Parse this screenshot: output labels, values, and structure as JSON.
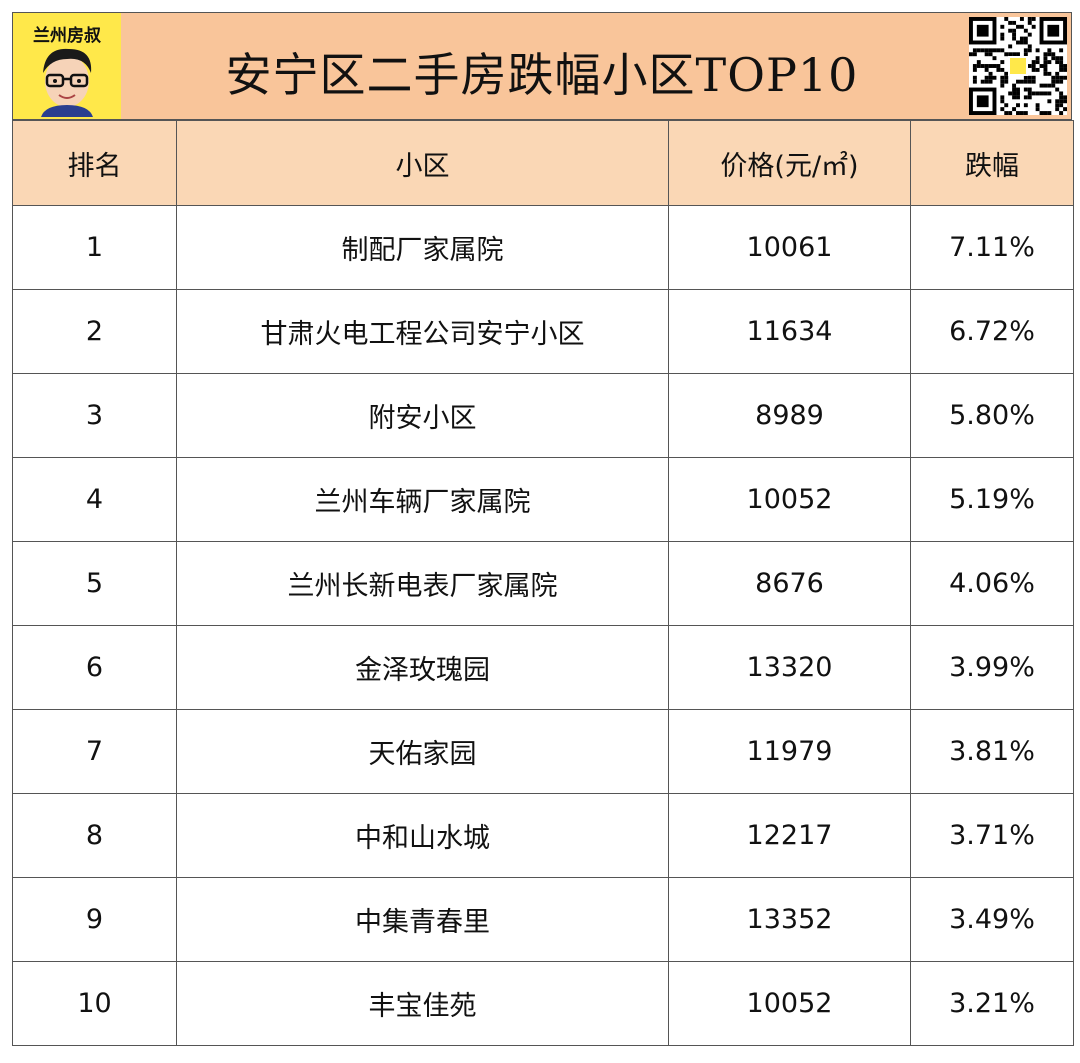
{
  "logo": {
    "text": "兰州房叔"
  },
  "title": "安宁区二手房跌幅小区TOP10",
  "chart_data": {
    "type": "table",
    "columns": [
      "排名",
      "小区",
      "价格(元/㎡)",
      "跌幅"
    ],
    "rows": [
      {
        "rank": "1",
        "name": "制配厂家属院",
        "price": "10061",
        "drop": "7.11%"
      },
      {
        "rank": "2",
        "name": "甘肃火电工程公司安宁小区",
        "price": "11634",
        "drop": "6.72%"
      },
      {
        "rank": "3",
        "name": "附安小区",
        "price": "8989",
        "drop": "5.80%"
      },
      {
        "rank": "4",
        "name": "兰州车辆厂家属院",
        "price": "10052",
        "drop": "5.19%"
      },
      {
        "rank": "5",
        "name": "兰州长新电表厂家属院",
        "price": "8676",
        "drop": "4.06%"
      },
      {
        "rank": "6",
        "name": "金泽玫瑰园",
        "price": "13320",
        "drop": "3.99%"
      },
      {
        "rank": "7",
        "name": "天佑家园",
        "price": "11979",
        "drop": "3.81%"
      },
      {
        "rank": "8",
        "name": "中和山水城",
        "price": "12217",
        "drop": "3.71%"
      },
      {
        "rank": "9",
        "name": "中集青春里",
        "price": "13352",
        "drop": "3.49%"
      },
      {
        "rank": "10",
        "name": "丰宝佳苑",
        "price": "10052",
        "drop": "3.21%"
      }
    ]
  },
  "colors": {
    "header_bg": "#fad7b5",
    "title_bg": "#f9c59a",
    "logo_bg": "#ffe84a",
    "price": "#e8141c",
    "drop": "#18a44b"
  }
}
